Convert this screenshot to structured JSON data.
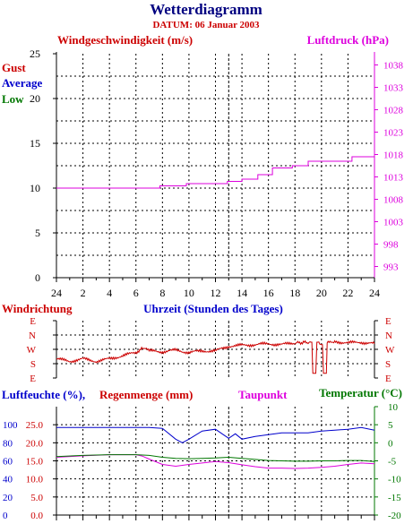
{
  "header": {
    "title": "Wetterdiagramm",
    "date": "DATUM: 06 Januar 2003"
  },
  "colors": {
    "navy": "#000080",
    "red": "#cc0000",
    "magenta": "#dd00dd",
    "blue": "#0000cc",
    "green": "#007700",
    "grid": "#000000"
  },
  "chart_data": [
    {
      "id": "wind_pressure",
      "type": "line",
      "title_left": "Windgeschwindigkeit (m/s)",
      "title_right": "Luftdruck (hPa)",
      "legend": [
        "Gust",
        "Average",
        "Low"
      ],
      "x_ticks": [
        "24",
        "2",
        "4",
        "6",
        "8",
        "10",
        "12",
        "14",
        "16",
        "18",
        "20",
        "22",
        "24"
      ],
      "xlim": [
        0,
        24
      ],
      "y_left_ticks": [
        0,
        5,
        10,
        15,
        20,
        25
      ],
      "ylim_left": [
        0,
        25
      ],
      "y_right_ticks": [
        993,
        998,
        1003,
        1008,
        1013,
        1018,
        1023,
        1028,
        1033,
        1038
      ],
      "ylim_right": [
        990.5,
        1040.5
      ],
      "grid": true,
      "series": [
        {
          "name": "Luftdruck (hPa)",
          "axis": "right",
          "color": "#dd00dd",
          "step": true,
          "x": [
            0.0,
            7.8,
            7.8,
            9.8,
            9.8,
            12.9,
            12.9,
            14.0,
            14.0,
            15.2,
            15.2,
            16.3,
            16.3,
            17.8,
            17.8,
            19.0,
            19.0,
            22.3,
            22.3,
            24.0
          ],
          "y": [
            1010.5,
            1010.5,
            1011.0,
            1011.0,
            1011.5,
            1011.5,
            1012.0,
            1012.0,
            1012.5,
            1012.5,
            1013.5,
            1013.5,
            1015.0,
            1015.0,
            1015.5,
            1015.5,
            1016.5,
            1016.5,
            1017.5,
            1017.5
          ]
        }
      ]
    },
    {
      "id": "wind_direction",
      "type": "line",
      "title_left": "Windrichtung",
      "title_center": "Uhrzeit (Stunden des Tages)",
      "y_ticks": [
        "E",
        "N",
        "W",
        "S",
        "E"
      ],
      "y_values": [
        90,
        0,
        -90,
        -180,
        -270
      ],
      "ylim": [
        -270,
        90
      ],
      "xlim": [
        0,
        24
      ],
      "grid": true,
      "series": [
        {
          "name": "Windrichtung",
          "color": "#cc0000",
          "x": [
            0,
            1,
            2,
            3,
            4,
            5,
            6,
            6.5,
            7,
            8,
            9,
            10,
            11,
            12,
            13,
            14,
            15,
            16,
            17,
            18,
            19.2,
            19.5,
            19.8,
            20,
            20.3,
            20.5,
            21,
            22,
            23,
            24
          ],
          "y": [
            -150,
            -165,
            -150,
            -165,
            -150,
            -130,
            -110,
            -80,
            -100,
            -105,
            -95,
            -110,
            -100,
            -100,
            -70,
            -65,
            -60,
            -55,
            -60,
            -50,
            -45,
            -240,
            -45,
            -60,
            -240,
            -50,
            -40,
            -50,
            -45,
            -55
          ]
        }
      ]
    },
    {
      "id": "humidity_rain_temp",
      "type": "line",
      "title_left": "Luftfeuchte (%),",
      "title_left2": "Regenmenge (mm)",
      "title_mid": "Taupunkt",
      "title_right": "Temperatur (°C)",
      "y_humidity_ticks": [
        0,
        20,
        40,
        60,
        80,
        100
      ],
      "ylim_humidity": [
        0,
        120
      ],
      "y_rain_ticks": [
        "0.0",
        "5.0",
        "10.0",
        "15.0",
        "20.0",
        "25.0"
      ],
      "ylim_rain": [
        0,
        30
      ],
      "y_temp_ticks": [
        -20,
        -15,
        -10,
        -5,
        0,
        5,
        10
      ],
      "ylim_temp": [
        -20,
        10
      ],
      "xlim": [
        0,
        24
      ],
      "grid": true,
      "series": [
        {
          "name": "Luftfeuchte (%)",
          "axis": "humidity",
          "color": "#0000cc",
          "x": [
            0,
            2,
            4,
            6,
            7,
            8,
            9,
            9.5,
            10,
            11,
            12,
            12.5,
            13,
            13.5,
            14,
            15,
            16,
            17,
            18,
            19,
            20,
            21,
            22,
            23,
            24
          ],
          "y": [
            97,
            97,
            97,
            97,
            97,
            96,
            84,
            80,
            84,
            93,
            95,
            90,
            85,
            90,
            84,
            87,
            89,
            91,
            91,
            91,
            93,
            94,
            95,
            97,
            94
          ]
        },
        {
          "name": "Taupunkt",
          "axis": "temp",
          "color": "#dd00dd",
          "x": [
            0,
            2,
            4,
            6,
            6.5,
            7,
            8,
            9,
            10,
            11,
            12,
            13,
            14,
            15,
            16,
            17,
            18,
            19,
            20,
            21,
            22,
            23,
            24
          ],
          "y": [
            -4.0,
            -3.6,
            -3.3,
            -3.3,
            -3.7,
            -4.5,
            -6.0,
            -6.5,
            -6.0,
            -5.6,
            -5.2,
            -5.5,
            -6.1,
            -6.6,
            -7.0,
            -7.0,
            -7.1,
            -7.0,
            -6.8,
            -6.5,
            -6.0,
            -5.6,
            -5.8
          ]
        },
        {
          "name": "Temperatur (°C)",
          "axis": "temp",
          "color": "#007700",
          "x": [
            0,
            2,
            4,
            6,
            7,
            8,
            9,
            10,
            11,
            12,
            13,
            14,
            15,
            16,
            17,
            18,
            19,
            20,
            21,
            22,
            23,
            24
          ],
          "y": [
            -3.8,
            -3.5,
            -3.3,
            -3.3,
            -3.5,
            -4.0,
            -4.3,
            -4.4,
            -4.3,
            -4.2,
            -4.0,
            -4.3,
            -4.6,
            -4.9,
            -5.0,
            -5.1,
            -5.1,
            -5.0,
            -5.0,
            -4.9,
            -4.9,
            -5.2
          ]
        }
      ]
    }
  ]
}
